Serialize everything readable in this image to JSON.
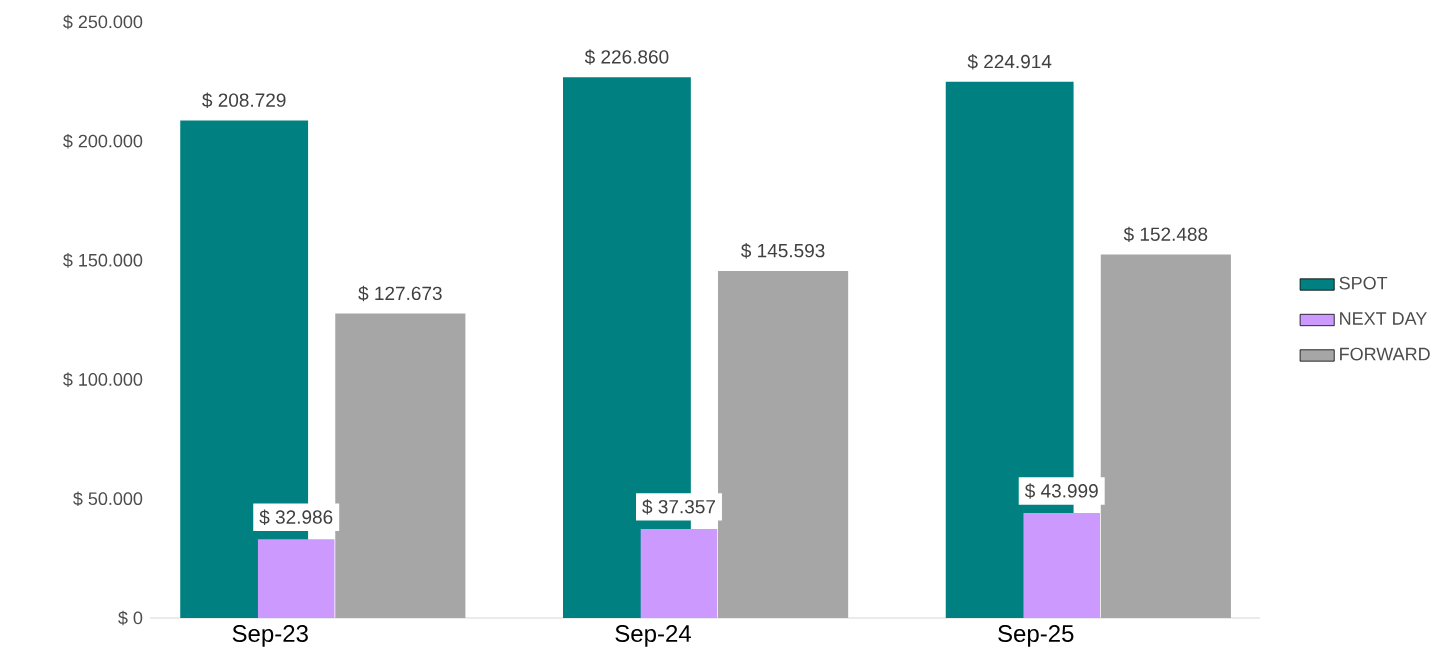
{
  "chart_data": {
    "type": "bar",
    "categories": [
      "Sep-23",
      "Sep-24",
      "Sep-25"
    ],
    "series": [
      {
        "name": "SPOT",
        "color": "#008080",
        "values": [
          208729,
          226860,
          224914
        ],
        "value_labels": [
          "$ 208.729",
          "$ 226.860",
          "$ 224.914"
        ]
      },
      {
        "name": "NEXT DAY",
        "color": "#cc99ff",
        "values": [
          32986,
          37357,
          43999
        ],
        "value_labels": [
          "$ 32.986",
          "$ 37.357",
          "$ 43.999"
        ]
      },
      {
        "name": "FORWARD",
        "color": "#a6a6a6",
        "values": [
          127673,
          145593,
          152488
        ],
        "value_labels": [
          "$ 127.673",
          "$ 145.593",
          "$ 152.488"
        ]
      }
    ],
    "ylim": [
      0,
      250000
    ],
    "yticks": [
      {
        "value": 0,
        "label": "$ 0"
      },
      {
        "value": 50000,
        "label": "$ 50.000"
      },
      {
        "value": 100000,
        "label": "$ 100.000"
      },
      {
        "value": 150000,
        "label": "$ 150.000"
      },
      {
        "value": 200000,
        "label": "$ 200.000"
      },
      {
        "value": 250000,
        "label": "$ 250.000"
      }
    ],
    "grid": false,
    "legend": "right"
  }
}
